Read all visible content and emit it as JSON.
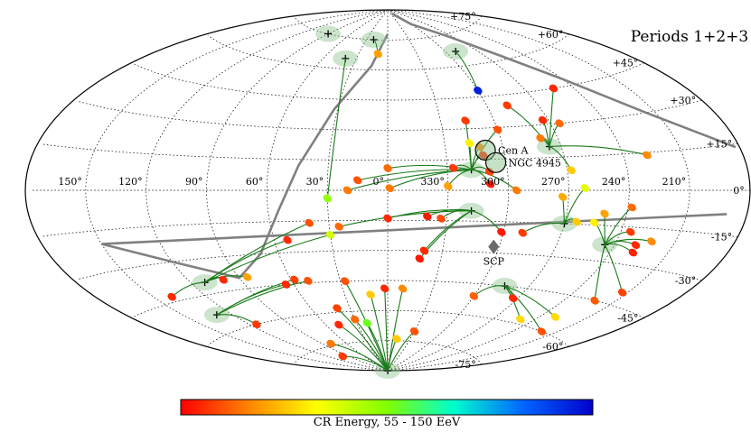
{
  "title": "Periods 1+2+3",
  "colorbar": {
    "label": "CR Energy, 55 - 150 EeV",
    "range": [
      55,
      150
    ],
    "colormap": [
      "#ff0000",
      "#ff8000",
      "#ffff00",
      "#80ff00",
      "#00ffcc",
      "#0066ff",
      "#0000cc"
    ]
  },
  "chart_data": {
    "type": "scatter",
    "projection": "aitoff",
    "coordinates": "galactic",
    "lon_tick_labels": [
      "150°",
      "120°",
      "90°",
      "60°",
      "30°",
      "0°",
      "330°",
      "300°",
      "270°",
      "240°",
      "210°"
    ],
    "lat_tick_labels": [
      "+75°",
      "+60°",
      "+45°",
      "+30°",
      "+15°",
      "0°",
      "-15°",
      "-30°",
      "-45°",
      "-60°",
      "-75°"
    ],
    "named_sources": [
      {
        "name": "Cen A",
        "l": 309.5,
        "b": 19.4
      },
      {
        "name": "NGC 4945",
        "l": 305.3,
        "b": 13.3
      },
      {
        "name": "SCP",
        "l": 302.9,
        "b": -27.1
      }
    ],
    "events": [
      {
        "l": 10,
        "b": 68,
        "E": 75
      },
      {
        "l": 316,
        "b": 34,
        "E": 62
      },
      {
        "l": 300,
        "b": 48,
        "E": 145
      },
      {
        "l": 300,
        "b": 29,
        "E": 65
      },
      {
        "l": 317,
        "b": 23,
        "E": 85
      },
      {
        "l": 312,
        "b": 21,
        "E": 72
      },
      {
        "l": 311,
        "b": 17,
        "E": 60
      },
      {
        "l": 309,
        "b": 9,
        "E": 63
      },
      {
        "l": 309,
        "b": 3,
        "E": 58
      },
      {
        "l": 296,
        "b": 0,
        "E": 70
      },
      {
        "l": 327,
        "b": 11,
        "E": 62
      },
      {
        "l": 330,
        "b": 2,
        "E": 75
      },
      {
        "l": 360,
        "b": 11,
        "E": 68
      },
      {
        "l": 359,
        "b": 1,
        "E": 70
      },
      {
        "l": 15,
        "b": 5,
        "E": 65
      },
      {
        "l": 20,
        "b": 0,
        "E": 70
      },
      {
        "l": 30,
        "b": -4,
        "E": 100
      },
      {
        "l": 288,
        "b": 40,
        "E": 62
      },
      {
        "l": 273,
        "b": 32,
        "E": 60
      },
      {
        "l": 279,
        "b": 24,
        "E": 70
      },
      {
        "l": 265,
        "b": 30,
        "E": 68
      },
      {
        "l": 252,
        "b": 45,
        "E": 60
      },
      {
        "l": 228,
        "b": 14,
        "E": 72
      },
      {
        "l": 264,
        "b": -14,
        "E": 80
      },
      {
        "l": 255,
        "b": -14,
        "E": 85
      },
      {
        "l": 251,
        "b": -10,
        "E": 75
      },
      {
        "l": 238,
        "b": -7,
        "E": 68
      },
      {
        "l": 235,
        "b": -17,
        "E": 62
      },
      {
        "l": 229,
        "b": -22,
        "E": 60
      },
      {
        "l": 222,
        "b": -20,
        "E": 72
      },
      {
        "l": 228,
        "b": -25,
        "E": 59
      },
      {
        "l": 301,
        "b": -20,
        "E": 58
      },
      {
        "l": 290,
        "b": -20,
        "E": 62
      },
      {
        "l": 340,
        "b": -13,
        "E": 58
      },
      {
        "l": 360,
        "b": -14,
        "E": 60
      },
      {
        "l": 25,
        "b": -18,
        "E": 68
      },
      {
        "l": 333,
        "b": -14,
        "E": 64
      },
      {
        "l": 340,
        "b": -30,
        "E": 60
      },
      {
        "l": 342,
        "b": -34,
        "E": 58
      },
      {
        "l": 30,
        "b": -22,
        "E": 92
      },
      {
        "l": 40,
        "b": -16,
        "E": 65
      },
      {
        "l": 53,
        "b": -24,
        "E": 60
      },
      {
        "l": 65,
        "b": -45,
        "E": 60
      },
      {
        "l": 58,
        "b": -43,
        "E": 63
      },
      {
        "l": 50,
        "b": -44,
        "E": 65
      },
      {
        "l": 100,
        "b": -40,
        "E": 60
      },
      {
        "l": 85,
        "b": -40,
        "E": 75
      },
      {
        "l": 140,
        "b": -43,
        "E": 60
      },
      {
        "l": 115,
        "b": -60,
        "E": 62
      },
      {
        "l": 40,
        "b": -58,
        "E": 63
      },
      {
        "l": 12,
        "b": -52,
        "E": 80
      },
      {
        "l": 2,
        "b": -49,
        "E": 60
      },
      {
        "l": 27,
        "b": -45,
        "E": 65
      },
      {
        "l": 350,
        "b": -49,
        "E": 72
      },
      {
        "l": 48,
        "b": -66,
        "E": 60
      },
      {
        "l": 30,
        "b": -64,
        "E": 68
      },
      {
        "l": 20,
        "b": -66,
        "E": 105
      },
      {
        "l": 348,
        "b": -74,
        "E": 80
      },
      {
        "l": 330,
        "b": -70,
        "E": 65
      },
      {
        "l": 300,
        "b": -51,
        "E": 67
      },
      {
        "l": 273,
        "b": -50,
        "E": 60
      },
      {
        "l": 250,
        "b": -58,
        "E": 82
      },
      {
        "l": 230,
        "b": -54,
        "E": 82
      },
      {
        "l": 222,
        "b": -45,
        "E": 66
      },
      {
        "l": 220,
        "b": -60,
        "E": 65
      },
      {
        "l": 213,
        "b": -40,
        "E": 63
      },
      {
        "l": 80,
        "b": -74,
        "E": 70
      },
      {
        "l": 100,
        "b": -80,
        "E": 62
      },
      {
        "l": 268,
        "b": 9,
        "E": 80
      },
      {
        "l": 262,
        "b": 1,
        "E": 90
      },
      {
        "l": 273,
        "b": -3,
        "E": 76
      }
    ],
    "event_centers": [
      {
        "l": 318,
        "b": 10
      },
      {
        "l": 318,
        "b": -10
      },
      {
        "l": 276,
        "b": 20
      },
      {
        "l": 270,
        "b": -15
      },
      {
        "l": 245,
        "b": -23
      },
      {
        "l": 285,
        "b": -45
      },
      {
        "l": 112,
        "b": -40
      },
      {
        "l": 130,
        "b": -53
      },
      {
        "l": 360,
        "b": -90
      },
      {
        "l": 290,
        "b": 67
      },
      {
        "l": 40,
        "b": 65
      },
      {
        "l": 20,
        "b": 75
      },
      {
        "l": 90,
        "b": 75
      }
    ],
    "curves": [
      "supergalactic_plane",
      "equatorial_boundary"
    ]
  }
}
